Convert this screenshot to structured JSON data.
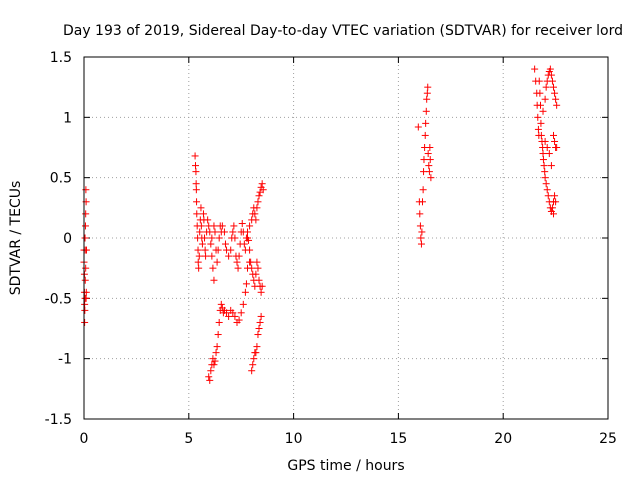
{
  "chart_data": {
    "type": "scatter",
    "title": "Day 193 of 2019, Sidereal Day-to-day VTEC variation (SDTVAR) for receiver lord",
    "xlabel": "GPS time / hours",
    "ylabel": "SDTVAR / TECUs",
    "xlim": [
      0,
      25
    ],
    "ylim": [
      -1.5,
      1.5
    ],
    "xticks": [
      0,
      5,
      10,
      15,
      20,
      25
    ],
    "xtick_labels": [
      "0",
      "5",
      "10",
      "15",
      "20",
      "25"
    ],
    "yticks": [
      -1.5,
      -1,
      -0.5,
      0,
      0.5,
      1,
      1.5
    ],
    "ytick_labels": [
      "-1.5",
      "-1",
      "-0.5",
      "0",
      "0.5",
      "1",
      "1.5"
    ],
    "grid": true,
    "marker": "+",
    "color": "#ff0000",
    "series": [
      {
        "name": "SDTVAR",
        "points": [
          [
            0.0,
            -0.1
          ],
          [
            0.0,
            -0.2
          ],
          [
            0.02,
            -0.3
          ],
          [
            0.02,
            -0.45
          ],
          [
            0.03,
            -0.55
          ],
          [
            0.03,
            -0.7
          ],
          [
            0.04,
            -0.6
          ],
          [
            0.05,
            -0.5
          ],
          [
            0.05,
            0.0
          ],
          [
            0.06,
            -0.1
          ],
          [
            0.07,
            0.1
          ],
          [
            0.08,
            0.2
          ],
          [
            0.09,
            0.4
          ],
          [
            0.1,
            0.3
          ],
          [
            0.1,
            -0.5
          ],
          [
            0.11,
            -0.45
          ],
          [
            0.12,
            -0.1
          ],
          [
            0.08,
            -0.25
          ],
          [
            0.06,
            -0.35
          ],
          [
            5.3,
            0.68
          ],
          [
            5.32,
            0.6
          ],
          [
            5.34,
            0.55
          ],
          [
            5.35,
            0.45
          ],
          [
            5.36,
            0.4
          ],
          [
            5.37,
            0.3
          ],
          [
            5.38,
            0.2
          ],
          [
            5.4,
            0.1
          ],
          [
            5.42,
            0.0
          ],
          [
            5.44,
            -0.1
          ],
          [
            5.45,
            -0.2
          ],
          [
            5.47,
            -0.25
          ],
          [
            5.5,
            -0.15
          ],
          [
            5.52,
            0.05
          ],
          [
            5.55,
            0.15
          ],
          [
            5.58,
            0.25
          ],
          [
            5.6,
            0.1
          ],
          [
            5.62,
            0.0
          ],
          [
            5.65,
            -0.05
          ],
          [
            5.7,
            0.2
          ],
          [
            5.72,
            0.15
          ],
          [
            5.75,
            0.0
          ],
          [
            5.78,
            -0.1
          ],
          [
            5.8,
            -0.15
          ],
          [
            5.85,
            0.05
          ],
          [
            5.9,
            0.15
          ],
          [
            5.95,
            0.1
          ],
          [
            6.0,
            0.05
          ],
          [
            6.05,
            -0.05
          ],
          [
            6.1,
            -0.15
          ],
          [
            6.15,
            -0.25
          ],
          [
            6.2,
            -0.35
          ],
          [
            6.1,
            0.0
          ],
          [
            6.2,
            0.1
          ],
          [
            6.25,
            0.05
          ],
          [
            6.3,
            -0.1
          ],
          [
            6.35,
            -0.2
          ],
          [
            6.4,
            -0.1
          ],
          [
            6.45,
            0.0
          ],
          [
            6.5,
            0.1
          ],
          [
            6.55,
            0.05
          ],
          [
            5.95,
            -1.15
          ],
          [
            6.0,
            -1.18
          ],
          [
            6.05,
            -1.1
          ],
          [
            6.1,
            -1.05
          ],
          [
            6.15,
            -1.0
          ],
          [
            6.2,
            -1.05
          ],
          [
            6.25,
            -1.02
          ],
          [
            6.3,
            -0.95
          ],
          [
            6.35,
            -0.9
          ],
          [
            6.4,
            -0.8
          ],
          [
            6.45,
            -0.7
          ],
          [
            6.5,
            -0.6
          ],
          [
            6.55,
            -0.55
          ],
          [
            6.6,
            -0.58
          ],
          [
            6.65,
            -0.62
          ],
          [
            6.6,
            0.1
          ],
          [
            6.7,
            0.05
          ],
          [
            6.75,
            -0.05
          ],
          [
            6.8,
            -0.1
          ],
          [
            6.9,
            -0.15
          ],
          [
            7.0,
            -0.1
          ],
          [
            7.05,
            0.0
          ],
          [
            7.1,
            0.05
          ],
          [
            7.15,
            0.1
          ],
          [
            7.2,
            0.0
          ],
          [
            7.25,
            -0.15
          ],
          [
            7.3,
            -0.2
          ],
          [
            7.35,
            -0.25
          ],
          [
            7.4,
            -0.15
          ],
          [
            7.45,
            -0.05
          ],
          [
            7.5,
            0.05
          ],
          [
            7.55,
            0.12
          ],
          [
            7.6,
            0.05
          ],
          [
            7.65,
            -0.05
          ],
          [
            7.7,
            -0.1
          ],
          [
            7.75,
            0.0
          ],
          [
            7.8,
            0.05
          ],
          [
            7.85,
            -0.02
          ],
          [
            7.9,
            -0.1
          ],
          [
            7.95,
            -0.2
          ],
          [
            6.7,
            -0.6
          ],
          [
            6.8,
            -0.62
          ],
          [
            6.9,
            -0.65
          ],
          [
            7.0,
            -0.6
          ],
          [
            7.1,
            -0.62
          ],
          [
            7.2,
            -0.65
          ],
          [
            7.3,
            -0.7
          ],
          [
            7.4,
            -0.68
          ],
          [
            7.5,
            -0.62
          ],
          [
            7.6,
            -0.55
          ],
          [
            7.7,
            -0.45
          ],
          [
            7.75,
            -0.38
          ],
          [
            7.8,
            -0.25
          ],
          [
            7.9,
            -0.2
          ],
          [
            8.0,
            -0.25
          ],
          [
            8.05,
            -0.3
          ],
          [
            8.1,
            -0.35
          ],
          [
            8.15,
            -0.4
          ],
          [
            8.2,
            -0.3
          ],
          [
            8.25,
            -0.2
          ],
          [
            8.3,
            -0.25
          ],
          [
            8.35,
            -0.35
          ],
          [
            8.4,
            -0.4
          ],
          [
            8.45,
            -0.45
          ],
          [
            8.5,
            -0.4
          ],
          [
            7.8,
            0.0
          ],
          [
            7.9,
            0.1
          ],
          [
            8.0,
            0.15
          ],
          [
            8.05,
            0.2
          ],
          [
            8.1,
            0.25
          ],
          [
            8.15,
            0.2
          ],
          [
            8.2,
            0.15
          ],
          [
            8.25,
            0.25
          ],
          [
            8.3,
            0.3
          ],
          [
            8.35,
            0.35
          ],
          [
            8.4,
            0.38
          ],
          [
            8.45,
            0.42
          ],
          [
            8.5,
            0.45
          ],
          [
            8.55,
            0.4
          ],
          [
            8.0,
            -1.1
          ],
          [
            8.05,
            -1.05
          ],
          [
            8.1,
            -1.0
          ],
          [
            8.15,
            -0.95
          ],
          [
            8.2,
            -0.95
          ],
          [
            8.25,
            -0.9
          ],
          [
            8.3,
            -0.8
          ],
          [
            8.35,
            -0.75
          ],
          [
            8.4,
            -0.7
          ],
          [
            8.45,
            -0.65
          ],
          [
            15.95,
            0.92
          ],
          [
            16.0,
            0.3
          ],
          [
            16.02,
            0.2
          ],
          [
            16.05,
            0.1
          ],
          [
            16.07,
            0.0
          ],
          [
            16.1,
            -0.05
          ],
          [
            16.12,
            0.05
          ],
          [
            16.15,
            0.3
          ],
          [
            16.18,
            0.4
          ],
          [
            16.2,
            0.55
          ],
          [
            16.22,
            0.65
          ],
          [
            16.25,
            0.75
          ],
          [
            16.28,
            0.85
          ],
          [
            16.3,
            0.95
          ],
          [
            16.33,
            1.05
          ],
          [
            16.35,
            1.15
          ],
          [
            16.38,
            1.2
          ],
          [
            16.4,
            1.25
          ],
          [
            16.42,
            0.7
          ],
          [
            16.45,
            0.6
          ],
          [
            16.48,
            0.55
          ],
          [
            16.5,
            0.75
          ],
          [
            16.52,
            0.65
          ],
          [
            16.55,
            0.5
          ],
          [
            21.5,
            1.4
          ],
          [
            21.55,
            1.3
          ],
          [
            21.6,
            1.2
          ],
          [
            21.62,
            1.1
          ],
          [
            21.65,
            1.0
          ],
          [
            21.68,
            0.9
          ],
          [
            21.7,
            0.85
          ],
          [
            21.72,
            1.3
          ],
          [
            21.75,
            1.2
          ],
          [
            21.78,
            1.1
          ],
          [
            21.8,
            0.95
          ],
          [
            21.82,
            0.85
          ],
          [
            21.85,
            0.8
          ],
          [
            21.88,
            0.75
          ],
          [
            21.9,
            0.7
          ],
          [
            21.92,
            0.65
          ],
          [
            21.95,
            0.6
          ],
          [
            21.98,
            0.55
          ],
          [
            22.0,
            0.5
          ],
          [
            22.05,
            0.45
          ],
          [
            22.1,
            0.4
          ],
          [
            22.15,
            0.35
          ],
          [
            22.2,
            0.3
          ],
          [
            22.25,
            0.25
          ],
          [
            22.3,
            0.22
          ],
          [
            22.35,
            0.25
          ],
          [
            22.4,
            0.3
          ],
          [
            22.45,
            0.35
          ],
          [
            22.5,
            0.3
          ],
          [
            22.4,
            0.2
          ],
          [
            21.9,
            1.05
          ],
          [
            22.0,
            1.15
          ],
          [
            22.05,
            1.25
          ],
          [
            22.1,
            1.3
          ],
          [
            22.15,
            1.35
          ],
          [
            22.2,
            1.38
          ],
          [
            22.25,
            1.4
          ],
          [
            22.3,
            1.35
          ],
          [
            22.35,
            1.3
          ],
          [
            22.4,
            1.25
          ],
          [
            22.45,
            1.2
          ],
          [
            22.5,
            1.15
          ],
          [
            22.55,
            1.1
          ],
          [
            22.4,
            0.85
          ],
          [
            22.45,
            0.8
          ],
          [
            22.5,
            0.75
          ],
          [
            22.55,
            0.75
          ],
          [
            22.0,
            0.8
          ],
          [
            22.1,
            0.75
          ],
          [
            22.2,
            0.7
          ],
          [
            22.3,
            0.6
          ]
        ]
      }
    ]
  }
}
